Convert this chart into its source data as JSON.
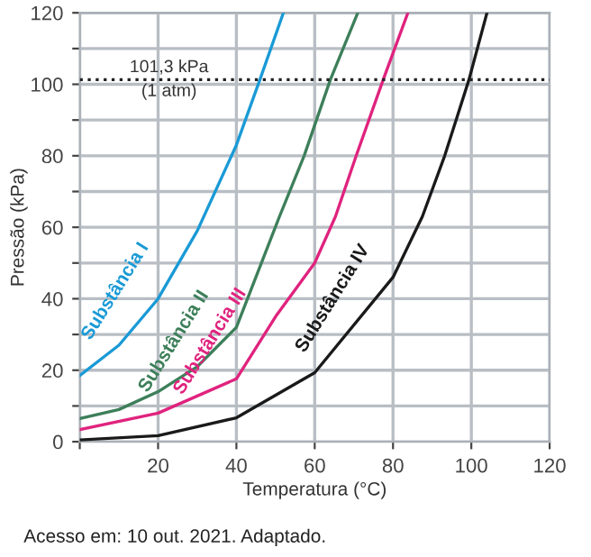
{
  "chart_data": {
    "type": "line",
    "xlabel": "Temperatura (°C)",
    "ylabel": "Pressão (kPa)",
    "xlim": [
      0,
      120
    ],
    "ylim": [
      0,
      120
    ],
    "xticks": [
      {
        "value": 0,
        "label": null
      },
      20,
      40,
      60,
      80,
      100,
      120
    ],
    "yticks": [
      0,
      {
        "value": 10,
        "label": null
      },
      20,
      {
        "value": 30,
        "label": null
      },
      40,
      {
        "value": 50,
        "label": null
      },
      60,
      {
        "value": 70,
        "label": null
      },
      80,
      {
        "value": 90,
        "label": null
      },
      100,
      {
        "value": 110,
        "label": null
      },
      120
    ],
    "grid": true,
    "marker": "none",
    "line_style": "solid",
    "ref_lines": [
      {
        "axis": "y",
        "value": 101.3,
        "label": "101,3 kPa\n(1 atm)",
        "color": "#222222",
        "line_style": "dotted"
      }
    ],
    "series": [
      {
        "name": "Substância I",
        "color": "#1a9ad6",
        "x": [
          0,
          10,
          20,
          30,
          40,
          46,
          52
        ],
        "values": [
          18.5,
          27,
          40,
          59,
          83,
          101.3,
          120
        ]
      },
      {
        "name": "Substância II",
        "color": "#3d7f5a",
        "x": [
          0,
          10,
          20,
          30,
          40,
          51,
          57.3,
          64,
          71
        ],
        "values": [
          6.5,
          9,
          14,
          21,
          32,
          63,
          80,
          101.3,
          120
        ]
      },
      {
        "name": "Substância III",
        "color": "#e0237e",
        "x": [
          0,
          20,
          40,
          50,
          60,
          65.3,
          70.6,
          77.5,
          83.8
        ],
        "values": [
          3.4,
          8,
          17.6,
          35,
          50,
          63,
          80,
          101.3,
          120
        ]
      },
      {
        "name": "Substância IV",
        "color": "#1a1a1a",
        "x": [
          0,
          20,
          40,
          60,
          80,
          87.5,
          93.2,
          99.4,
          104
        ],
        "values": [
          0.5,
          1.7,
          6.7,
          19.3,
          46,
          63,
          80,
          101.3,
          120
        ]
      }
    ],
    "annotations": [
      "Acesso em: 10 out. 2021. Adaptado."
    ]
  }
}
